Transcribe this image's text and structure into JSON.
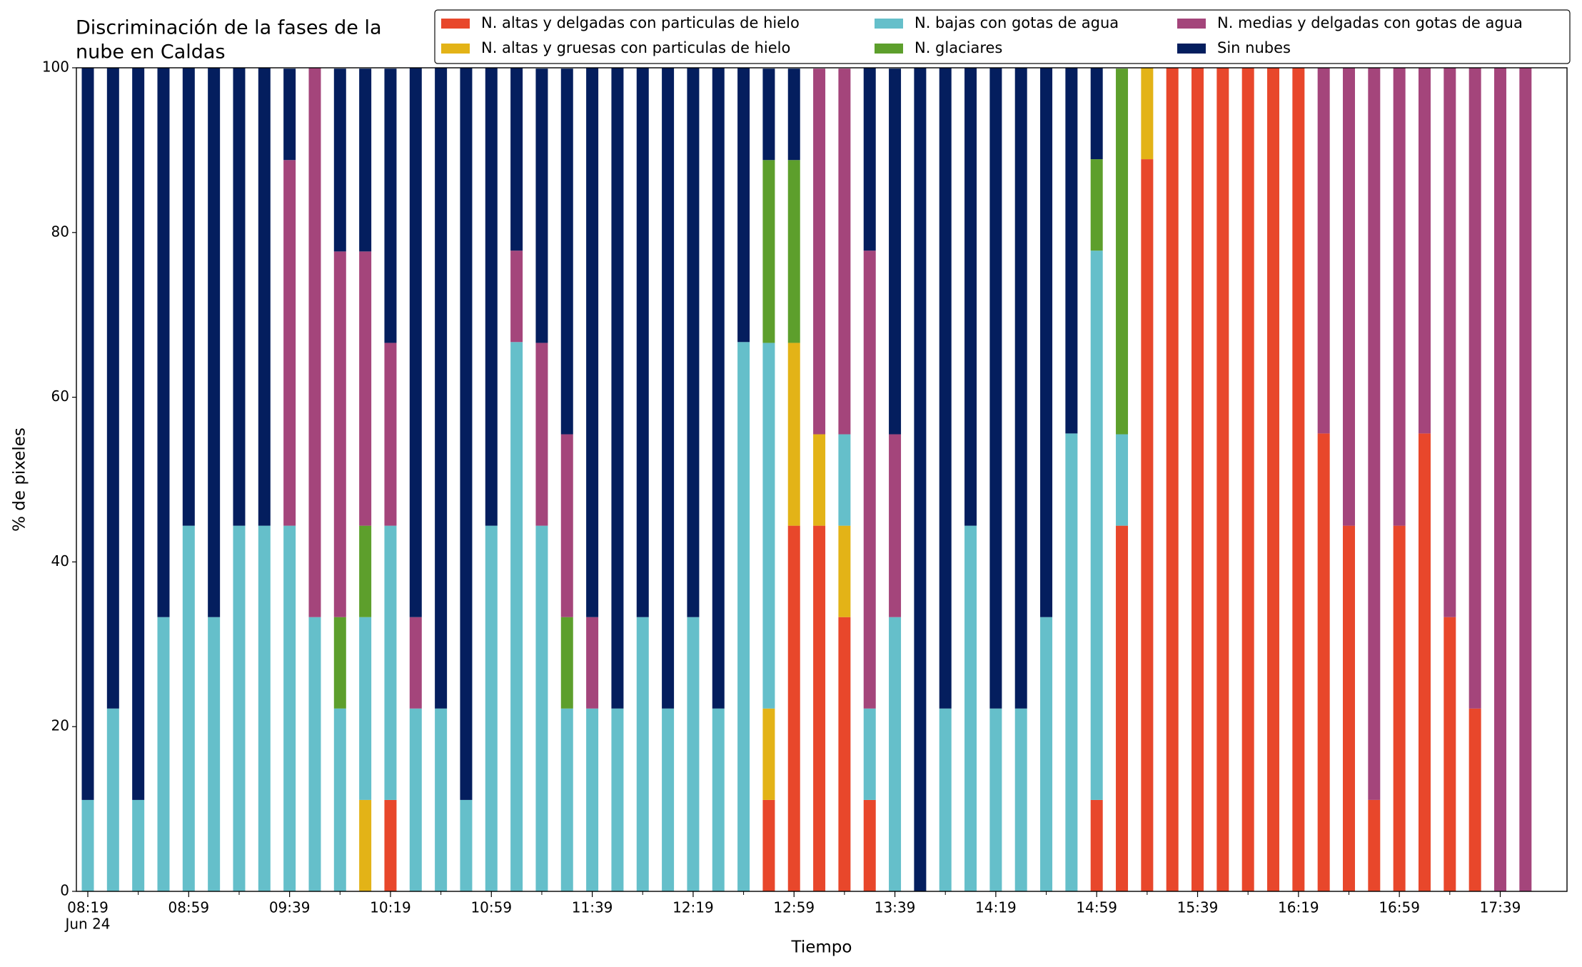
{
  "chart_data": {
    "type": "stacked_bar",
    "title": [
      "Discriminación de la fases de la",
      "nube en Caldas"
    ],
    "x_label": "Tiempo",
    "y_label": "% de pixeles",
    "x_date_label": "Jun 24",
    "categories": [
      "08:19",
      null,
      null,
      null,
      "08:59",
      null,
      null,
      null,
      "09:39",
      null,
      null,
      null,
      "10:19",
      null,
      null,
      null,
      "10:59",
      null,
      null,
      null,
      "11:39",
      null,
      null,
      null,
      "12:19",
      null,
      null,
      null,
      "12:59",
      null,
      null,
      null,
      "13:39",
      null,
      null,
      null,
      "14:19",
      null,
      null,
      null,
      "14:59",
      null,
      null,
      null,
      "15:39",
      null,
      null,
      null,
      "16:19",
      null,
      null,
      null,
      "16:59",
      null,
      null,
      null,
      "17:39",
      null
    ],
    "ylim": [
      0,
      100
    ],
    "yticks": [
      0,
      20,
      40,
      60,
      80,
      100
    ],
    "legend": "top-right",
    "series": [
      {
        "name": "N. altas y delgadas con particulas de hielo",
        "color": "#e8472b",
        "values": [
          0,
          0,
          0,
          0,
          0,
          0,
          0,
          0,
          0,
          0,
          0,
          0,
          11.1,
          0,
          0,
          0,
          0,
          0,
          0,
          0,
          0,
          0,
          0,
          0,
          0,
          0,
          0,
          11.1,
          44.4,
          44.4,
          33.3,
          11.1,
          0,
          0,
          0,
          0,
          0,
          0,
          0,
          0,
          11.1,
          44.4,
          88.9,
          100,
          100,
          100,
          100,
          100,
          100,
          55.6,
          44.4,
          11.1,
          44.4,
          55.6,
          33.3,
          22.2,
          0,
          0
        ]
      },
      {
        "name": "N. altas y gruesas con particulas de hielo",
        "color": "#e3b317",
        "values": [
          0,
          0,
          0,
          0,
          0,
          0,
          0,
          0,
          0,
          0,
          0,
          11.1,
          0,
          0,
          0,
          0,
          0,
          0,
          0,
          0,
          0,
          0,
          0,
          0,
          0,
          0,
          0,
          11.1,
          22.2,
          11.1,
          11.1,
          0,
          0,
          0,
          0,
          0,
          0,
          0,
          0,
          0,
          0,
          0,
          11.1,
          0,
          0,
          0,
          0,
          0,
          0,
          0,
          0,
          0,
          0,
          0,
          0,
          0,
          0,
          0
        ]
      },
      {
        "name": "N. bajas con gotas de agua",
        "color": "#65bfca",
        "values": [
          11.1,
          22.2,
          11.1,
          33.3,
          44.4,
          33.3,
          44.4,
          44.4,
          44.4,
          33.3,
          22.2,
          22.2,
          33.3,
          22.2,
          22.2,
          11.1,
          44.4,
          66.7,
          44.4,
          22.2,
          22.2,
          22.2,
          33.3,
          22.2,
          33.3,
          22.2,
          66.7,
          44.4,
          0,
          0,
          11.1,
          11.1,
          33.3,
          0,
          22.2,
          44.4,
          22.2,
          22.2,
          33.3,
          55.6,
          66.7,
          11.1,
          0,
          0,
          0,
          0,
          0,
          0,
          0,
          0,
          0,
          0,
          0,
          0,
          0,
          0,
          0,
          0
        ]
      },
      {
        "name": "N. glaciares",
        "color": "#5d9f2c",
        "values": [
          0,
          0,
          0,
          0,
          0,
          0,
          0,
          0,
          0,
          0,
          11.1,
          11.1,
          0,
          0,
          0,
          0,
          0,
          0,
          0,
          11.1,
          0,
          0,
          0,
          0,
          0,
          0,
          0,
          22.2,
          22.2,
          0,
          0,
          0,
          0,
          0,
          0,
          0,
          0,
          0,
          0,
          0,
          11.1,
          44.4,
          0,
          0,
          0,
          0,
          0,
          0,
          0,
          0,
          0,
          0,
          0,
          0,
          0,
          0,
          0,
          0
        ]
      },
      {
        "name": "N. medias y delgadas con gotas de agua",
        "color": "#a4457b",
        "values": [
          0,
          0,
          0,
          0,
          0,
          0,
          0,
          0,
          44.4,
          66.7,
          44.4,
          33.3,
          22.2,
          11.1,
          0,
          0,
          0,
          11.1,
          22.2,
          22.2,
          11.1,
          0,
          0,
          0,
          0,
          0,
          0,
          0,
          0,
          44.4,
          44.4,
          55.6,
          22.2,
          0,
          0,
          0,
          0,
          0,
          0,
          0,
          0,
          0,
          0,
          0,
          0,
          0,
          0,
          0,
          0,
          44.4,
          55.6,
          88.9,
          55.6,
          44.4,
          66.7,
          77.8,
          100,
          100
        ]
      },
      {
        "name": "Sin nubes",
        "color": "#041e5e",
        "values": [
          88.9,
          77.8,
          88.9,
          66.7,
          55.6,
          66.7,
          55.6,
          55.6,
          11.1,
          0,
          22.2,
          22.2,
          33.3,
          66.7,
          77.8,
          88.9,
          55.6,
          22.2,
          33.3,
          44.4,
          66.7,
          77.8,
          66.7,
          77.8,
          66.7,
          77.8,
          33.3,
          11.1,
          11.1,
          0,
          0,
          22.2,
          44.4,
          100,
          77.8,
          55.6,
          77.8,
          77.8,
          66.7,
          44.4,
          11.1,
          0,
          0,
          0,
          0,
          0,
          0,
          0,
          0,
          0,
          0,
          0,
          0,
          0,
          0,
          0,
          0,
          0
        ]
      }
    ]
  }
}
